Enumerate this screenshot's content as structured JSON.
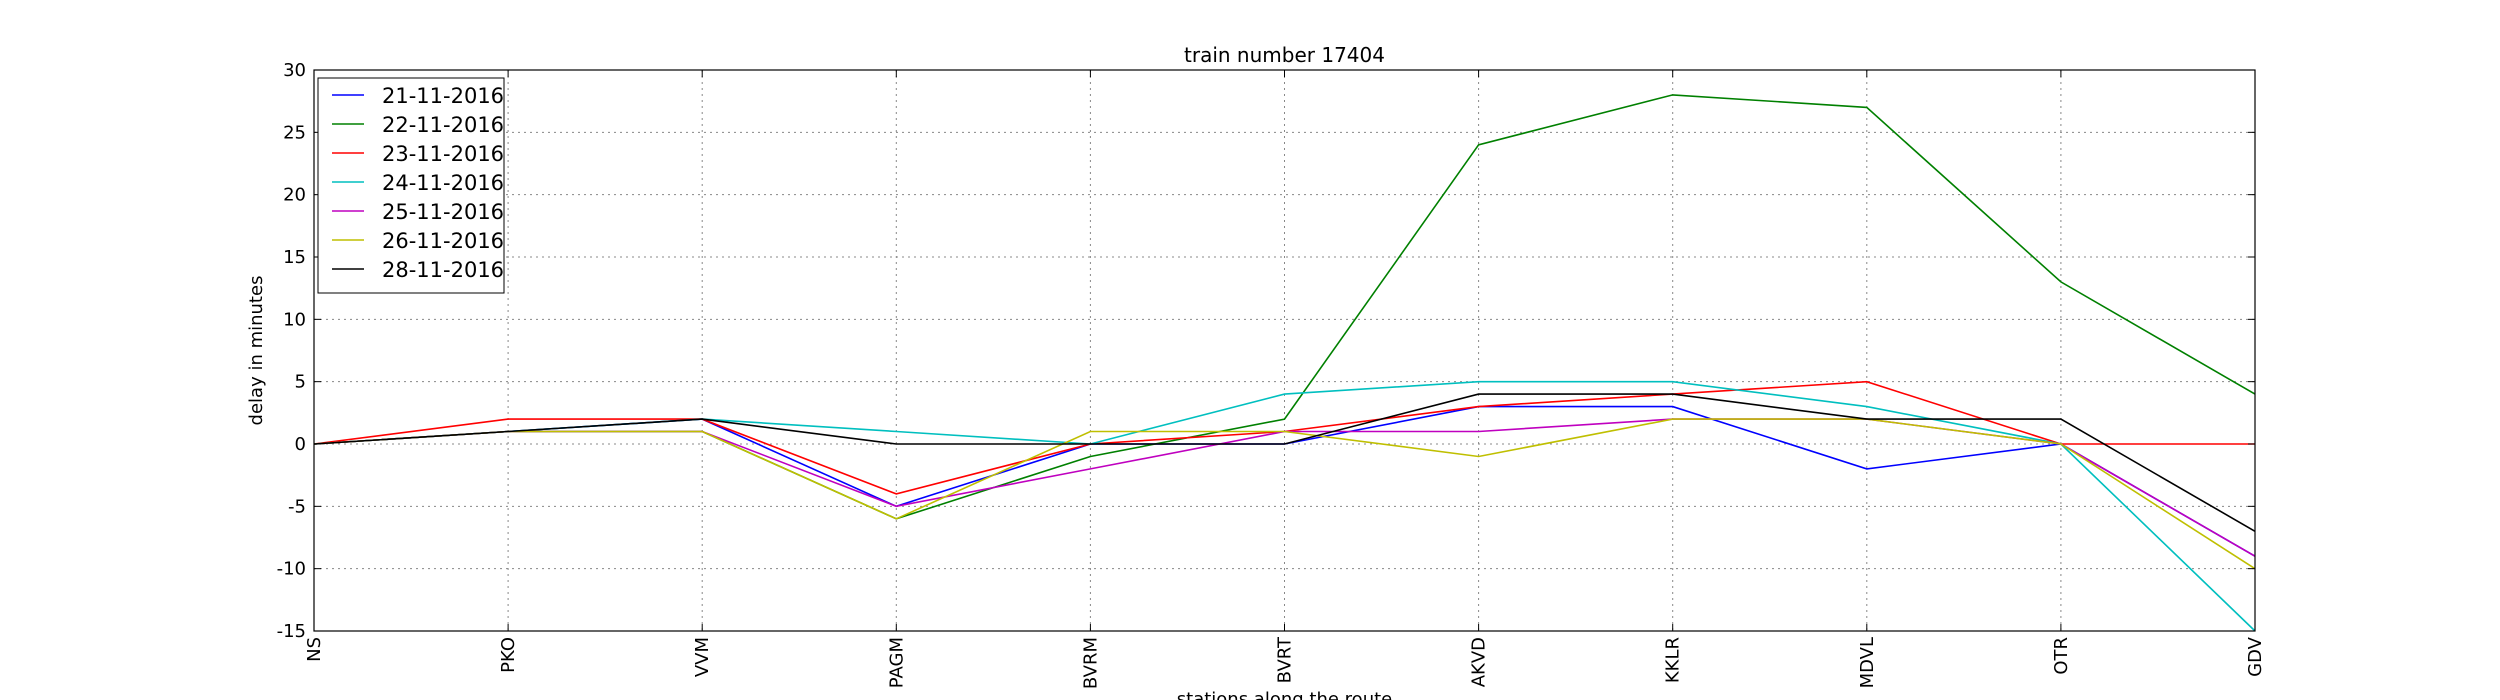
{
  "chart_data": {
    "type": "line",
    "title": "train number 17404",
    "xlabel": "stations along the route",
    "ylabel": "delay in minutes",
    "categories": [
      "NS",
      "PKO",
      "VVM",
      "PAGM",
      "BVRM",
      "BVRT",
      "AKVD",
      "KKLR",
      "MDVL",
      "OTR",
      "GDV"
    ],
    "ylim": [
      -15,
      30
    ],
    "yticks": [
      -15,
      -10,
      -5,
      0,
      5,
      10,
      15,
      20,
      25,
      30
    ],
    "grid": true,
    "legend_position": "top-left",
    "series": [
      {
        "name": "21-11-2016",
        "color": "#0000ff",
        "values": [
          0,
          1,
          2,
          -5,
          0,
          0,
          3,
          3,
          -2,
          0,
          -9
        ]
      },
      {
        "name": "22-11-2016",
        "color": "#008000",
        "values": [
          0,
          1,
          1,
          -6,
          -1,
          2,
          24,
          28,
          27,
          13,
          4
        ]
      },
      {
        "name": "23-11-2016",
        "color": "#ff0000",
        "values": [
          0,
          2,
          2,
          -4,
          0,
          1,
          3,
          4,
          5,
          0,
          0
        ]
      },
      {
        "name": "24-11-2016",
        "color": "#00bfbf",
        "values": [
          0,
          1,
          2,
          1,
          0,
          4,
          5,
          5,
          3,
          0,
          -15
        ]
      },
      {
        "name": "25-11-2016",
        "color": "#bf00bf",
        "values": [
          0,
          1,
          1,
          -5,
          -2,
          1,
          1,
          2,
          2,
          0,
          -9
        ]
      },
      {
        "name": "26-11-2016",
        "color": "#bfbf00",
        "values": [
          0,
          1,
          1,
          -6,
          1,
          1,
          -1,
          2,
          2,
          0,
          -10
        ]
      },
      {
        "name": "28-11-2016",
        "color": "#000000",
        "values": [
          0,
          1,
          2,
          0,
          0,
          0,
          4,
          4,
          2,
          2,
          -7
        ]
      }
    ]
  }
}
